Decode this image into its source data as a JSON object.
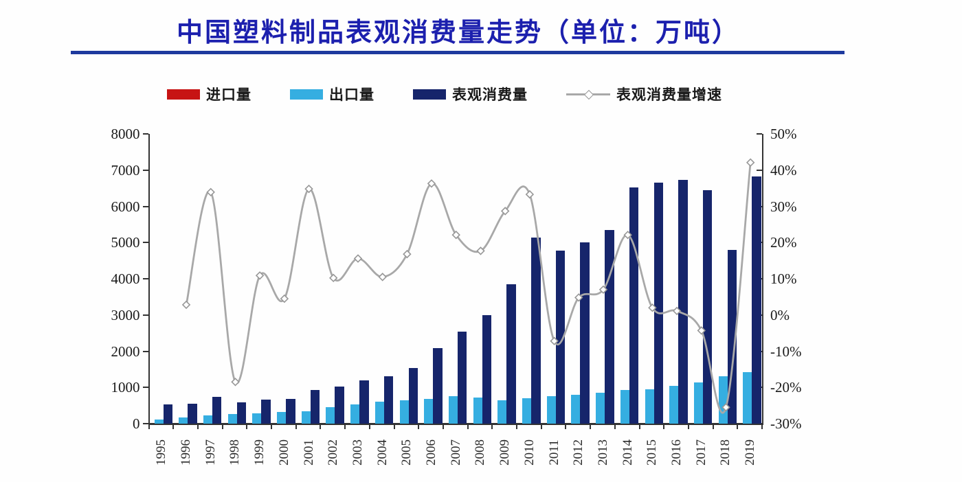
{
  "title": {
    "text": "中国塑料制品表观消费量走势（单位：万吨）"
  },
  "colors": {
    "title_text": "#1c20ae",
    "title_rule": "#1e3a9e",
    "import_bar": "#c71414",
    "export_bar": "#35aee1",
    "consumption_bar": "#16256b",
    "growth_line": "#a8a8a8",
    "marker_fill": "#ffffff",
    "marker_stroke": "#979797",
    "axis": "#333333"
  },
  "legend": [
    {
      "label": "进口量",
      "marker": "bar",
      "color": "#c71414"
    },
    {
      "label": "出口量",
      "marker": "bar",
      "color": "#35aee1"
    },
    {
      "label": "表观消费量",
      "marker": "bar",
      "color": "#16256b"
    },
    {
      "label": "表观消费量增速",
      "marker": "line-diamond",
      "color": "#a8a8a8"
    }
  ],
  "chart_data": {
    "type": "bar",
    "subtype": "grouped bars with secondary-axis line",
    "title": "中国塑料制品表观消费量走势（单位：万吨）",
    "xlabel": "",
    "ylabel": "",
    "grid": false,
    "legend_position": "top",
    "categories": [
      "1995",
      "1996",
      "1997",
      "1998",
      "1999",
      "2000",
      "2001",
      "2002",
      "2003",
      "2004",
      "2005",
      "2006",
      "2007",
      "2008",
      "2009",
      "2010",
      "2011",
      "2012",
      "2013",
      "2014",
      "2015",
      "2016",
      "2017",
      "2018",
      "2019"
    ],
    "left_axis": {
      "min": 0,
      "max": 8000,
      "step": 1000,
      "tick_labels": [
        "0",
        "1000",
        "2000",
        "3000",
        "4000",
        "5000",
        "6000",
        "7000",
        "8000"
      ]
    },
    "right_axis": {
      "min": -30,
      "max": 50,
      "step": 10,
      "suffix": "%",
      "tick_labels": [
        "-30%",
        "-20%",
        "-10%",
        "0%",
        "10%",
        "20%",
        "30%",
        "40%",
        "50%"
      ]
    },
    "series": [
      {
        "name": "进口量",
        "type": "bar",
        "axis": "left",
        "color": "#c71414",
        "values": [
          0,
          0,
          0,
          0,
          0,
          0,
          0,
          0,
          0,
          0,
          0,
          0,
          0,
          0,
          0,
          0,
          0,
          0,
          0,
          0,
          0,
          0,
          0,
          0,
          0
        ]
      },
      {
        "name": "出口量",
        "type": "bar",
        "axis": "left",
        "color": "#35aee1",
        "values": [
          120,
          170,
          230,
          260,
          280,
          320,
          340,
          450,
          530,
          605,
          645,
          680,
          755,
          720,
          645,
          705,
          750,
          795,
          860,
          925,
          945,
          1040,
          1130,
          1300,
          1415
        ]
      },
      {
        "name": "表观消费量",
        "type": "bar",
        "axis": "left",
        "color": "#16256b",
        "values": [
          530,
          545,
          730,
          595,
          660,
          690,
          930,
          1025,
          1185,
          1310,
          1530,
          2085,
          2545,
          2995,
          3855,
          5140,
          4770,
          5000,
          5350,
          6530,
          6660,
          6730,
          6440,
          4800,
          6820
        ]
      },
      {
        "name": "表观消费量增速",
        "type": "line",
        "axis": "right",
        "unit": "%",
        "marker": "open-diamond",
        "color": "#a8a8a8",
        "values": [
          null,
          2.8,
          33.9,
          -18.5,
          10.9,
          4.5,
          34.8,
          10.2,
          15.6,
          10.5,
          16.8,
          36.3,
          22.1,
          17.7,
          28.7,
          33.3,
          -7.2,
          4.8,
          7.0,
          22.1,
          2.0,
          1.1,
          -4.3,
          -25.5,
          42.1
        ]
      }
    ]
  }
}
